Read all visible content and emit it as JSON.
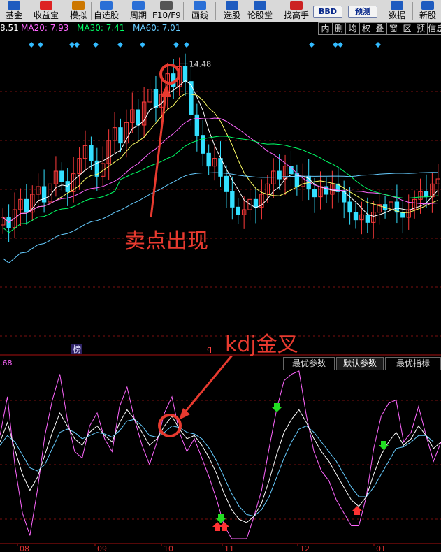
{
  "toolbar": {
    "items": [
      {
        "label": "基金",
        "icon": "fund-icon",
        "color": "#1e5bbf"
      },
      {
        "label": "收益宝",
        "icon": "profit-icon",
        "color": "#d22"
      },
      {
        "label": "模拟",
        "icon": "simulate-icon",
        "color": "#c70"
      },
      {
        "label": "自选股",
        "icon": "watchlist-icon",
        "color": "#2a6fd6"
      },
      {
        "label": "周期",
        "icon": "clock-icon",
        "color": "#2a6fd6"
      },
      {
        "label": "F10/F9",
        "icon": "f10-icon",
        "color": "#555"
      },
      {
        "label": "画线",
        "icon": "pen-icon",
        "color": "#2a6fd6"
      },
      {
        "label": "选股",
        "icon": "stock-pick-icon",
        "color": "#1e5bbf"
      },
      {
        "label": "论股堂",
        "icon": "forum-icon",
        "color": "#1e5bbf"
      },
      {
        "label": "找高手",
        "icon": "expert-icon",
        "color": "#c22"
      },
      {
        "label": "数据",
        "icon": "data-icon",
        "color": "#1e5bbf"
      },
      {
        "label": "新股",
        "icon": "ipo-icon",
        "color": "#1e5bbf"
      }
    ],
    "pill_bbd": "BBD",
    "pill_forecast": "预测"
  },
  "ma_bar": [
    {
      "text": "8.51",
      "color": "#ffffff"
    },
    {
      "text": "MA20: 7.93",
      "color": "#ff66ff"
    },
    {
      "text": "MA30: 7.41",
      "color": "#00ff66"
    },
    {
      "text": "MA60: 7.01",
      "color": "#66ccff"
    }
  ],
  "mode_tabs": [
    "内",
    "删",
    "均",
    "权",
    "叠",
    "窗",
    "区",
    "预",
    "信息"
  ],
  "price_chart": {
    "peak_label": "14.48",
    "annotation": "卖点出现",
    "annotation_color": "#e83a2f",
    "marker_text": "榜",
    "marker_q": "q",
    "candle_up_color": "#ff3b3b",
    "candle_down_color": "#33e0ff",
    "ma_colors": {
      "ma5": "#ffffff",
      "ma10": "#ffff66",
      "ma20": "#ff66ff",
      "ma30": "#00ff66",
      "ma60": "#66ccff"
    }
  },
  "kdj_chart": {
    "value_label": ".68",
    "annotation": "kdj金叉",
    "tabs": [
      {
        "label": "最优参数",
        "active": false
      },
      {
        "label": "默认参数",
        "active": true
      },
      {
        "label": "最优指标",
        "active": false
      }
    ],
    "x_ticks": [
      "08",
      "09",
      "10",
      "11",
      "12",
      "01"
    ],
    "k_color": "#ffffff",
    "d_color": "#66ccff",
    "j_color": "#ff66ff"
  },
  "chart_data": {
    "type": "candlestick",
    "title": "",
    "peak_price": 14.48,
    "x_ticks": [
      "08",
      "09",
      "10",
      "11",
      "12",
      "01"
    ],
    "series": [
      {
        "name": "MA20",
        "last": 7.93
      },
      {
        "name": "MA30",
        "last": 7.41
      },
      {
        "name": "MA60",
        "last": 7.01
      }
    ],
    "annotations": [
      "卖点出现",
      "kdj金叉"
    ],
    "close_series": [
      8.6,
      8.2,
      8.9,
      9.3,
      8.8,
      9.5,
      9.8,
      9.2,
      9.9,
      10.4,
      10.0,
      9.6,
      10.3,
      10.9,
      11.4,
      10.8,
      10.2,
      10.7,
      11.6,
      12.1,
      11.5,
      12.3,
      12.8,
      12.2,
      13.1,
      13.6,
      12.9,
      13.4,
      14.2,
      13.7,
      14.48,
      13.9,
      12.6,
      11.8,
      11.1,
      10.6,
      10.9,
      10.2,
      9.6,
      9.0,
      8.7,
      8.9,
      9.3,
      9.0,
      9.5,
      9.9,
      10.4,
      10.1,
      10.6,
      10.3,
      9.8,
      10.2,
      9.7,
      9.4,
      9.8,
      9.5,
      9.9,
      9.6,
      9.2,
      8.8,
      8.5,
      8.7,
      8.4,
      8.8,
      9.1,
      8.9,
      9.2,
      8.8,
      8.6,
      8.9,
      9.3,
      9.6,
      9.4,
      9.9,
      10.1
    ],
    "kdj": {
      "K": [
        60,
        72,
        55,
        40,
        30,
        38,
        52,
        66,
        78,
        70,
        62,
        58,
        66,
        70,
        64,
        60,
        72,
        80,
        74,
        66,
        58,
        62,
        70,
        76,
        68,
        62,
        64,
        58,
        50,
        40,
        28,
        18,
        12,
        10,
        14,
        22,
        36,
        52,
        66,
        74,
        80,
        72,
        62,
        54,
        48,
        40,
        32,
        24,
        20,
        26,
        40,
        52,
        60,
        66,
        58,
        62,
        70,
        64,
        56,
        60
      ],
      "D": [
        58,
        64,
        60,
        52,
        44,
        42,
        46,
        56,
        66,
        68,
        66,
        62,
        64,
        66,
        65,
        63,
        67,
        73,
        74,
        70,
        64,
        63,
        66,
        70,
        69,
        66,
        65,
        62,
        56,
        48,
        38,
        28,
        20,
        15,
        14,
        18,
        26,
        38,
        50,
        60,
        68,
        70,
        66,
        60,
        54,
        48,
        40,
        32,
        26,
        26,
        32,
        40,
        48,
        56,
        57,
        60,
        64,
        64,
        60,
        60
      ],
      "J": [
        64,
        88,
        45,
        16,
        2,
        30,
        64,
        86,
        102,
        74,
        54,
        50,
        70,
        78,
        62,
        54,
        82,
        94,
        74,
        58,
        46,
        60,
        78,
        88,
        66,
        54,
        62,
        50,
        38,
        24,
        8,
        0,
        0,
        0,
        14,
        30,
        56,
        80,
        98,
        102,
        104,
        76,
        54,
        42,
        36,
        24,
        16,
        8,
        8,
        26,
        56,
        76,
        84,
        86,
        60,
        66,
        82,
        64,
        48,
        60
      ]
    }
  }
}
